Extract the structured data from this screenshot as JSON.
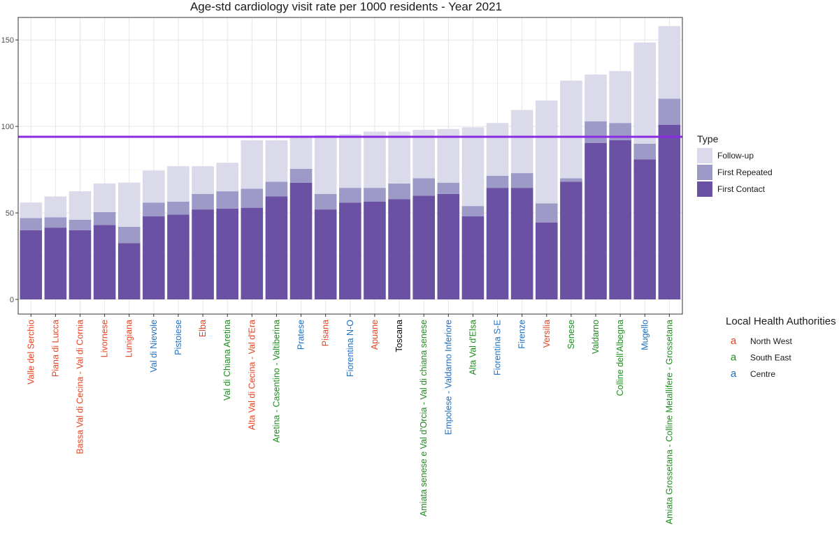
{
  "chart_data": {
    "type": "bar",
    "stacked": true,
    "title": "Age-std cardiology visit rate per 1000 residents - Year 2021",
    "xlabel": "",
    "ylabel": "",
    "ylim": [
      0,
      163
    ],
    "yticks": [
      0,
      50,
      100,
      150
    ],
    "grid": true,
    "reference_line": {
      "value": 94,
      "color": "#8a2be2"
    },
    "categories": [
      {
        "name": "Valle del Serchio",
        "area": "North West"
      },
      {
        "name": "Piana di Lucca",
        "area": "North West"
      },
      {
        "name": "Bassa Val di Cecina - Val di Cornia",
        "area": "North West"
      },
      {
        "name": "Livornese",
        "area": "North West"
      },
      {
        "name": "Lunigiana",
        "area": "North West"
      },
      {
        "name": "Val di Nievole",
        "area": "Centre"
      },
      {
        "name": "Pistoiese",
        "area": "Centre"
      },
      {
        "name": "Elba",
        "area": "North West"
      },
      {
        "name": "Val di Chiana Aretina",
        "area": "South East"
      },
      {
        "name": "Alta Val di Cecina - Val d'Era",
        "area": "North West"
      },
      {
        "name": "Aretina - Casentino - Valtiberina",
        "area": "South East"
      },
      {
        "name": "Pratese",
        "area": "Centre"
      },
      {
        "name": "Pisana",
        "area": "North West"
      },
      {
        "name": "Fiorentina N-O",
        "area": "Centre"
      },
      {
        "name": "Apuane",
        "area": "North West"
      },
      {
        "name": "Toscana",
        "area": "Region"
      },
      {
        "name": "Amiata senese e Val d'Orcia - Val di chiana senese",
        "area": "South East"
      },
      {
        "name": "Empolese - Valdarno Inferiore",
        "area": "Centre"
      },
      {
        "name": "Alta Val d'Elsa",
        "area": "South East"
      },
      {
        "name": "Fiorentina S-E",
        "area": "Centre"
      },
      {
        "name": "Firenze",
        "area": "Centre"
      },
      {
        "name": "Versilia",
        "area": "North West"
      },
      {
        "name": "Senese",
        "area": "South East"
      },
      {
        "name": "Valdarno",
        "area": "South East"
      },
      {
        "name": "Colline dell'Albegna",
        "area": "South East"
      },
      {
        "name": "Mugello",
        "area": "Centre"
      },
      {
        "name": "Amiata Grossetana - Colline Metallifere - Grossetana",
        "area": "South East"
      }
    ],
    "series": [
      {
        "name": "First Contact",
        "color": "#6a51a3",
        "values": [
          40,
          41.5,
          40,
          43,
          32.5,
          48,
          49,
          52,
          52.5,
          53,
          59.5,
          67.5,
          52,
          56,
          56.5,
          58,
          60,
          61,
          48,
          64.5,
          64.5,
          44.5,
          68,
          90.5,
          92,
          81,
          101
        ]
      },
      {
        "name": "First Repeated",
        "color": "#9e9ac8",
        "values": [
          7,
          6,
          6,
          7.5,
          9.5,
          8,
          7.5,
          9,
          10,
          11,
          8.5,
          8,
          9,
          8.5,
          8,
          9,
          10,
          6.5,
          6,
          7,
          8.5,
          11,
          2,
          12.5,
          10,
          9,
          15
        ]
      },
      {
        "name": "Follow-up",
        "color": "#dadaeb",
        "values": [
          9,
          12,
          16.5,
          16.5,
          25.5,
          18.5,
          20.5,
          16,
          16.5,
          28,
          24,
          18,
          34,
          31,
          32.5,
          30,
          28,
          31,
          45.5,
          30.5,
          36.5,
          59.5,
          56.5,
          27,
          30,
          58.5,
          42
        ]
      }
    ],
    "legend": {
      "title": "Type",
      "items": [
        "Follow-up",
        "First Repeated",
        "First Contact"
      ]
    },
    "area_legend": {
      "title": "Local Health Authorities",
      "symbol": "a",
      "items": [
        {
          "name": "North West",
          "color": "#e8421e"
        },
        {
          "name": "South East",
          "color": "#1e8c1e"
        },
        {
          "name": "Centre",
          "color": "#1e6fbf"
        }
      ],
      "region_color": "#000000"
    }
  }
}
